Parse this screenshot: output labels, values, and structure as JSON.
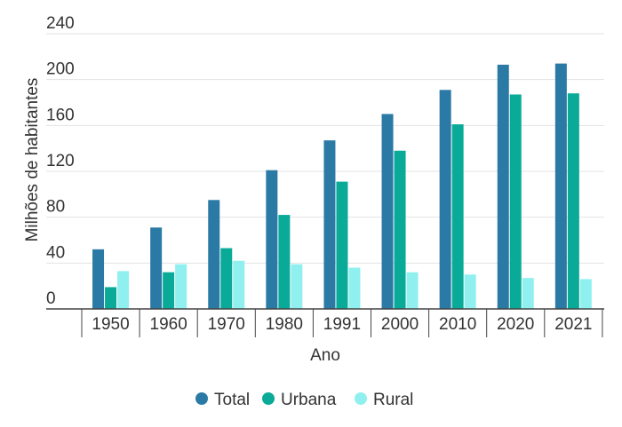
{
  "chart_data": {
    "type": "bar",
    "title": "",
    "xlabel": "Ano",
    "ylabel": "Milhões de habitantes",
    "categories": [
      "1950",
      "1960",
      "1970",
      "1980",
      "1991",
      "2000",
      "2010",
      "2020",
      "2021"
    ],
    "series": [
      {
        "name": "Total",
        "color": "#2a7aa5",
        "values": [
          52,
          71,
          95,
          121,
          147,
          170,
          191,
          213,
          214
        ]
      },
      {
        "name": "Urbana",
        "color": "#0aaa98",
        "values": [
          19,
          32,
          53,
          82,
          111,
          138,
          161,
          187,
          188
        ]
      },
      {
        "name": "Rural",
        "color": "#90f0f0",
        "values": [
          33,
          39,
          42,
          39,
          36,
          32,
          30,
          27,
          26
        ]
      }
    ],
    "ylim": [
      0,
      240
    ],
    "yticks": [
      0,
      40,
      80,
      120,
      160,
      200,
      240
    ],
    "grid": true,
    "legend_position": "bottom"
  }
}
